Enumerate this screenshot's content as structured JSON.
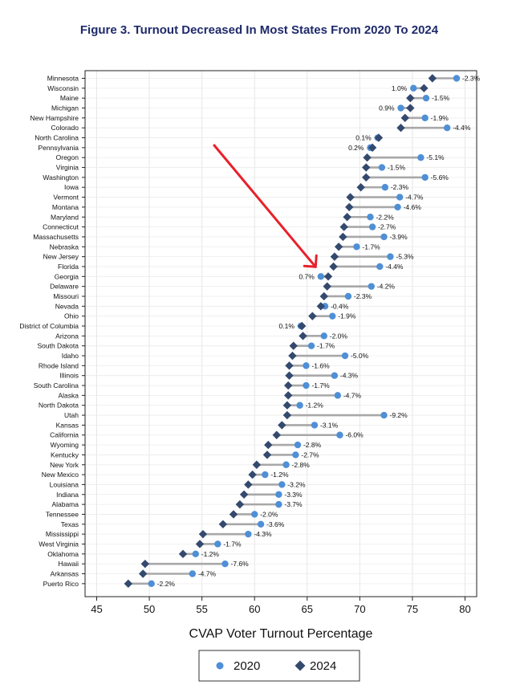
{
  "chart_data": {
    "type": "dumbbell",
    "title": "Figure 3. Turnout Decreased In Most States From 2020 To 2024",
    "xlabel": "CVAP Voter Turnout Percentage",
    "ylabel": "",
    "xlim": [
      44,
      81
    ],
    "xticks": [
      45,
      50,
      55,
      60,
      65,
      70,
      75,
      80
    ],
    "grid": true,
    "legend_position": "bottom",
    "colors": {
      "2020": "#4f8fd6",
      "2024": "#34496e",
      "connector": "#a8a8a8",
      "arrow": "#e8202a"
    },
    "series": [
      {
        "name": "2020",
        "marker": "circle"
      },
      {
        "name": "2024",
        "marker": "diamond"
      }
    ],
    "annotation": {
      "type": "arrow",
      "color": "red",
      "points_to": "Georgia"
    },
    "states": [
      {
        "name": "Minnesota",
        "v2020": 79.2,
        "v2024": 76.9,
        "label": "-2.3%"
      },
      {
        "name": "Wisconsin",
        "v2020": 75.1,
        "v2024": 76.1,
        "label": "1.0%"
      },
      {
        "name": "Maine",
        "v2020": 76.3,
        "v2024": 74.8,
        "label": "-1.5%"
      },
      {
        "name": "Michigan",
        "v2020": 73.9,
        "v2024": 74.8,
        "label": "0.9%"
      },
      {
        "name": "New Hampshire",
        "v2020": 76.2,
        "v2024": 74.3,
        "label": "-1.9%"
      },
      {
        "name": "Colorado",
        "v2020": 78.3,
        "v2024": 73.9,
        "label": "-4.4%"
      },
      {
        "name": "North Carolina",
        "v2020": 71.7,
        "v2024": 71.8,
        "label": "0.1%"
      },
      {
        "name": "Pennsylvania",
        "v2020": 71.0,
        "v2024": 71.2,
        "label": "0.2%"
      },
      {
        "name": "Oregon",
        "v2020": 75.8,
        "v2024": 70.7,
        "label": "-5.1%"
      },
      {
        "name": "Virginia",
        "v2020": 72.1,
        "v2024": 70.6,
        "label": "-1.5%"
      },
      {
        "name": "Washington",
        "v2020": 76.2,
        "v2024": 70.6,
        "label": "-5.6%"
      },
      {
        "name": "Iowa",
        "v2020": 72.4,
        "v2024": 70.1,
        "label": "-2.3%"
      },
      {
        "name": "Vermont",
        "v2020": 73.8,
        "v2024": 69.1,
        "label": "-4.7%"
      },
      {
        "name": "Montana",
        "v2020": 73.6,
        "v2024": 69.0,
        "label": "-4.6%"
      },
      {
        "name": "Maryland",
        "v2020": 71.0,
        "v2024": 68.8,
        "label": "-2.2%"
      },
      {
        "name": "Connecticut",
        "v2020": 71.2,
        "v2024": 68.5,
        "label": "-2.7%"
      },
      {
        "name": "Massachusetts",
        "v2020": 72.3,
        "v2024": 68.4,
        "label": "-3.9%"
      },
      {
        "name": "Nebraska",
        "v2020": 69.7,
        "v2024": 68.0,
        "label": "-1.7%"
      },
      {
        "name": "New Jersey",
        "v2020": 72.9,
        "v2024": 67.6,
        "label": "-5.3%"
      },
      {
        "name": "Florida",
        "v2020": 71.9,
        "v2024": 67.5,
        "label": "-4.4%"
      },
      {
        "name": "Georgia",
        "v2020": 66.3,
        "v2024": 67.0,
        "label": "0.7%"
      },
      {
        "name": "Delaware",
        "v2020": 71.1,
        "v2024": 66.9,
        "label": "-4.2%"
      },
      {
        "name": "Missouri",
        "v2020": 68.9,
        "v2024": 66.6,
        "label": "-2.3%"
      },
      {
        "name": "Nevada",
        "v2020": 66.7,
        "v2024": 66.3,
        "label": "-0.4%"
      },
      {
        "name": "Ohio",
        "v2020": 67.4,
        "v2024": 65.5,
        "label": "-1.9%"
      },
      {
        "name": "District of Columbia",
        "v2020": 64.4,
        "v2024": 64.5,
        "label": "0.1%"
      },
      {
        "name": "Arizona",
        "v2020": 66.6,
        "v2024": 64.6,
        "label": "-2.0%"
      },
      {
        "name": "South Dakota",
        "v2020": 65.4,
        "v2024": 63.7,
        "label": "-1.7%"
      },
      {
        "name": "Idaho",
        "v2020": 68.6,
        "v2024": 63.6,
        "label": "-5.0%"
      },
      {
        "name": "Rhode Island",
        "v2020": 64.9,
        "v2024": 63.3,
        "label": "-1.6%"
      },
      {
        "name": "Illinois",
        "v2020": 67.6,
        "v2024": 63.3,
        "label": "-4.3%"
      },
      {
        "name": "South Carolina",
        "v2020": 64.9,
        "v2024": 63.2,
        "label": "-1.7%"
      },
      {
        "name": "Alaska",
        "v2020": 67.9,
        "v2024": 63.2,
        "label": "-4.7%"
      },
      {
        "name": "North Dakota",
        "v2020": 64.3,
        "v2024": 63.1,
        "label": "-1.2%"
      },
      {
        "name": "Utah",
        "v2020": 72.3,
        "v2024": 63.1,
        "label": "-9.2%"
      },
      {
        "name": "Kansas",
        "v2020": 65.7,
        "v2024": 62.6,
        "label": "-3.1%"
      },
      {
        "name": "California",
        "v2020": 68.1,
        "v2024": 62.1,
        "label": "-6.0%"
      },
      {
        "name": "Wyoming",
        "v2020": 64.1,
        "v2024": 61.3,
        "label": "-2.8%"
      },
      {
        "name": "Kentucky",
        "v2020": 63.9,
        "v2024": 61.2,
        "label": "-2.7%"
      },
      {
        "name": "New York",
        "v2020": 63.0,
        "v2024": 60.2,
        "label": "-2.8%"
      },
      {
        "name": "New Mexico",
        "v2020": 61.0,
        "v2024": 59.8,
        "label": "-1.2%"
      },
      {
        "name": "Louisiana",
        "v2020": 62.6,
        "v2024": 59.4,
        "label": "-3.2%"
      },
      {
        "name": "Indiana",
        "v2020": 62.3,
        "v2024": 59.0,
        "label": "-3.3%"
      },
      {
        "name": "Alabama",
        "v2020": 62.3,
        "v2024": 58.6,
        "label": "-3.7%"
      },
      {
        "name": "Tennessee",
        "v2020": 60.0,
        "v2024": 58.0,
        "label": "-2.0%"
      },
      {
        "name": "Texas",
        "v2020": 60.6,
        "v2024": 57.0,
        "label": "-3.6%"
      },
      {
        "name": "Mississippi",
        "v2020": 59.4,
        "v2024": 55.1,
        "label": "-4.3%"
      },
      {
        "name": "West Virginia",
        "v2020": 56.5,
        "v2024": 54.8,
        "label": "-1.7%"
      },
      {
        "name": "Oklahoma",
        "v2020": 54.4,
        "v2024": 53.2,
        "label": "-1.2%"
      },
      {
        "name": "Hawaii",
        "v2020": 57.2,
        "v2024": 49.6,
        "label": "-7.6%"
      },
      {
        "name": "Arkansas",
        "v2020": 54.1,
        "v2024": 49.4,
        "label": "-4.7%"
      },
      {
        "name": "Puerto Rico",
        "v2020": 50.2,
        "v2024": 48.0,
        "label": "-2.2%"
      }
    ]
  }
}
